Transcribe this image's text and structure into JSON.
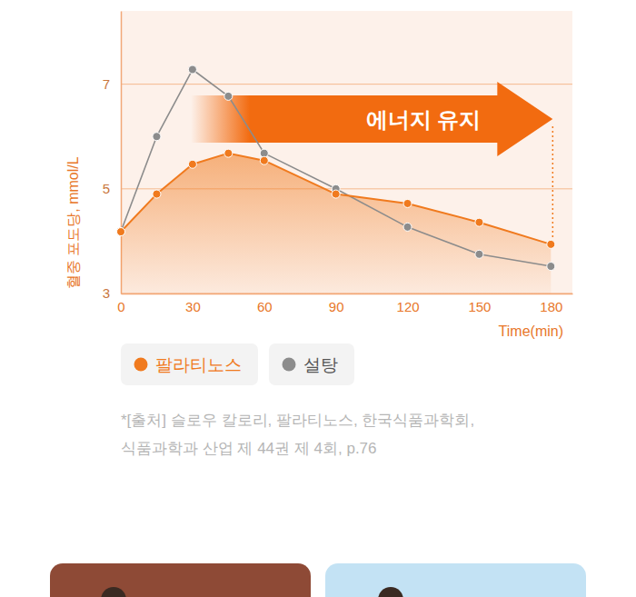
{
  "chart_data": {
    "type": "line",
    "y_label": "혈중 포도당, mmol/L",
    "x_label": "Time(min)",
    "x": [
      0,
      15,
      30,
      45,
      60,
      90,
      120,
      150,
      180
    ],
    "series": [
      {
        "name": "팔라티노스",
        "color": "#f07a1e",
        "type": "area",
        "marker": "circle",
        "values": [
          4.18,
          4.9,
          5.47,
          5.68,
          5.54,
          4.9,
          4.72,
          4.36,
          3.94
        ]
      },
      {
        "name": "설탕",
        "color": "#8c8c8c",
        "type": "line",
        "marker": "circle",
        "values": [
          4.18,
          6.0,
          7.28,
          6.77,
          5.68,
          5.0,
          4.27,
          3.75,
          3.52
        ]
      }
    ],
    "xlim": [
      0,
      189
    ],
    "ylim": [
      3,
      8.4
    ],
    "xticks": [
      0,
      30,
      60,
      90,
      120,
      150,
      180
    ],
    "yticks": [
      3,
      5,
      7
    ],
    "grid": true,
    "legend": "bottom",
    "annotation": "에너지 유지",
    "source": [
      "*[출처] 슬로우 칼로리, 팔라티노스, 한국식품과학회,",
      "식품과학과 산업 제 44권 제 4회, p.76"
    ]
  }
}
